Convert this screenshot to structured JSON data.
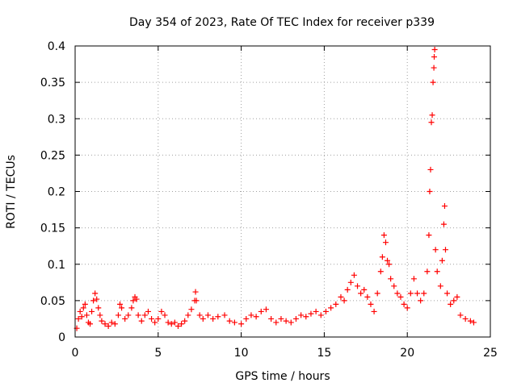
{
  "chart_data": {
    "type": "scatter",
    "title": "Day 354 of 2023, Rate Of TEC Index for receiver p339",
    "xlabel": "GPS time / hours",
    "ylabel": "ROTI / TECUs",
    "xlim": [
      0,
      25
    ],
    "ylim": [
      0,
      0.4
    ],
    "xticks": [
      0,
      5,
      10,
      15,
      20,
      25
    ],
    "xtick_labels": [
      "0",
      "5",
      "10",
      "15",
      "20",
      "25"
    ],
    "yticks": [
      0,
      0.05,
      0.1,
      0.15,
      0.2,
      0.25,
      0.3,
      0.35,
      0.4
    ],
    "ytick_labels": [
      "0",
      "0.05",
      "0.1",
      "0.15",
      "0.2",
      "0.25",
      "0.3",
      "0.35",
      "0.4"
    ],
    "grid": true,
    "marker": "+",
    "color": "#ff0000",
    "series": [
      {
        "points": [
          [
            0.1,
            0.012
          ],
          [
            0.2,
            0.025
          ],
          [
            0.3,
            0.035
          ],
          [
            0.4,
            0.028
          ],
          [
            0.5,
            0.04
          ],
          [
            0.6,
            0.045
          ],
          [
            0.7,
            0.03
          ],
          [
            0.8,
            0.02
          ],
          [
            0.9,
            0.018
          ],
          [
            1.0,
            0.035
          ],
          [
            1.1,
            0.05
          ],
          [
            1.2,
            0.06
          ],
          [
            1.3,
            0.052
          ],
          [
            1.4,
            0.04
          ],
          [
            1.5,
            0.03
          ],
          [
            1.6,
            0.022
          ],
          [
            1.8,
            0.018
          ],
          [
            2.0,
            0.015
          ],
          [
            2.2,
            0.02
          ],
          [
            2.4,
            0.018
          ],
          [
            2.6,
            0.03
          ],
          [
            2.7,
            0.045
          ],
          [
            2.8,
            0.04
          ],
          [
            3.0,
            0.025
          ],
          [
            3.2,
            0.03
          ],
          [
            3.4,
            0.04
          ],
          [
            3.5,
            0.05
          ],
          [
            3.6,
            0.055
          ],
          [
            3.7,
            0.052
          ],
          [
            3.8,
            0.03
          ],
          [
            4.0,
            0.022
          ],
          [
            4.2,
            0.03
          ],
          [
            4.4,
            0.035
          ],
          [
            4.6,
            0.025
          ],
          [
            4.8,
            0.02
          ],
          [
            5.0,
            0.025
          ],
          [
            5.2,
            0.035
          ],
          [
            5.4,
            0.03
          ],
          [
            5.6,
            0.02
          ],
          [
            5.8,
            0.018
          ],
          [
            6.0,
            0.02
          ],
          [
            6.2,
            0.015
          ],
          [
            6.4,
            0.018
          ],
          [
            6.6,
            0.022
          ],
          [
            6.8,
            0.03
          ],
          [
            7.0,
            0.038
          ],
          [
            7.2,
            0.05
          ],
          [
            7.25,
            0.062
          ],
          [
            7.3,
            0.05
          ],
          [
            7.5,
            0.03
          ],
          [
            7.7,
            0.025
          ],
          [
            8.0,
            0.03
          ],
          [
            8.3,
            0.025
          ],
          [
            8.6,
            0.028
          ],
          [
            9.0,
            0.03
          ],
          [
            9.3,
            0.022
          ],
          [
            9.6,
            0.02
          ],
          [
            10.0,
            0.018
          ],
          [
            10.3,
            0.025
          ],
          [
            10.6,
            0.03
          ],
          [
            10.9,
            0.028
          ],
          [
            11.2,
            0.035
          ],
          [
            11.5,
            0.038
          ],
          [
            11.8,
            0.025
          ],
          [
            12.1,
            0.02
          ],
          [
            12.4,
            0.025
          ],
          [
            12.7,
            0.022
          ],
          [
            13.0,
            0.02
          ],
          [
            13.3,
            0.025
          ],
          [
            13.6,
            0.03
          ],
          [
            13.9,
            0.028
          ],
          [
            14.2,
            0.032
          ],
          [
            14.5,
            0.035
          ],
          [
            14.8,
            0.03
          ],
          [
            15.1,
            0.035
          ],
          [
            15.4,
            0.04
          ],
          [
            15.7,
            0.045
          ],
          [
            16.0,
            0.055
          ],
          [
            16.2,
            0.05
          ],
          [
            16.4,
            0.065
          ],
          [
            16.6,
            0.075
          ],
          [
            16.8,
            0.085
          ],
          [
            17.0,
            0.07
          ],
          [
            17.2,
            0.06
          ],
          [
            17.4,
            0.065
          ],
          [
            17.6,
            0.055
          ],
          [
            17.8,
            0.045
          ],
          [
            18.0,
            0.035
          ],
          [
            18.2,
            0.06
          ],
          [
            18.4,
            0.09
          ],
          [
            18.5,
            0.11
          ],
          [
            18.6,
            0.14
          ],
          [
            18.7,
            0.13
          ],
          [
            18.8,
            0.105
          ],
          [
            18.9,
            0.1
          ],
          [
            19.0,
            0.08
          ],
          [
            19.2,
            0.07
          ],
          [
            19.4,
            0.06
          ],
          [
            19.6,
            0.055
          ],
          [
            19.8,
            0.045
          ],
          [
            20.0,
            0.04
          ],
          [
            20.2,
            0.06
          ],
          [
            20.4,
            0.08
          ],
          [
            20.6,
            0.06
          ],
          [
            20.8,
            0.05
          ],
          [
            21.0,
            0.06
          ],
          [
            21.2,
            0.09
          ],
          [
            21.3,
            0.14
          ],
          [
            21.35,
            0.2
          ],
          [
            21.4,
            0.23
          ],
          [
            21.45,
            0.295
          ],
          [
            21.5,
            0.305
          ],
          [
            21.55,
            0.35
          ],
          [
            21.6,
            0.37
          ],
          [
            21.62,
            0.385
          ],
          [
            21.65,
            0.395
          ],
          [
            21.7,
            0.12
          ],
          [
            21.8,
            0.09
          ],
          [
            22.0,
            0.07
          ],
          [
            22.1,
            0.105
          ],
          [
            22.2,
            0.155
          ],
          [
            22.25,
            0.18
          ],
          [
            22.3,
            0.12
          ],
          [
            22.4,
            0.06
          ],
          [
            22.6,
            0.045
          ],
          [
            22.8,
            0.05
          ],
          [
            23.0,
            0.055
          ],
          [
            23.2,
            0.03
          ],
          [
            23.5,
            0.025
          ],
          [
            23.8,
            0.022
          ],
          [
            24.0,
            0.02
          ]
        ]
      }
    ]
  }
}
